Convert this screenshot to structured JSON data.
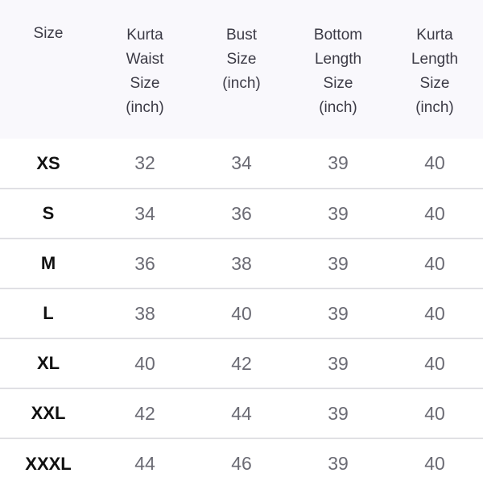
{
  "table": {
    "headers": [
      {
        "lines": [
          "Size"
        ]
      },
      {
        "lines": [
          "Kurta",
          "Waist",
          "Size",
          "(inch)"
        ]
      },
      {
        "lines": [
          "Bust",
          "Size",
          "(inch)"
        ]
      },
      {
        "lines": [
          "Bottom",
          "Length",
          "Size",
          "(inch)"
        ]
      },
      {
        "lines": [
          "Kurta",
          "Length",
          "Size",
          "(inch)"
        ]
      }
    ],
    "rows": [
      [
        "XS",
        "32",
        "34",
        "39",
        "40"
      ],
      [
        "S",
        "34",
        "36",
        "39",
        "40"
      ],
      [
        "M",
        "36",
        "38",
        "39",
        "40"
      ],
      [
        "L",
        "38",
        "40",
        "39",
        "40"
      ],
      [
        "XL",
        "40",
        "42",
        "39",
        "40"
      ],
      [
        "XXL",
        "42",
        "44",
        "39",
        "40"
      ],
      [
        "XXXL",
        "44",
        "46",
        "39",
        "40"
      ]
    ]
  },
  "colors": {
    "header_bg": "#f9f8fc",
    "divider": "#e0e0e4",
    "value_text": "#6b6b74"
  }
}
